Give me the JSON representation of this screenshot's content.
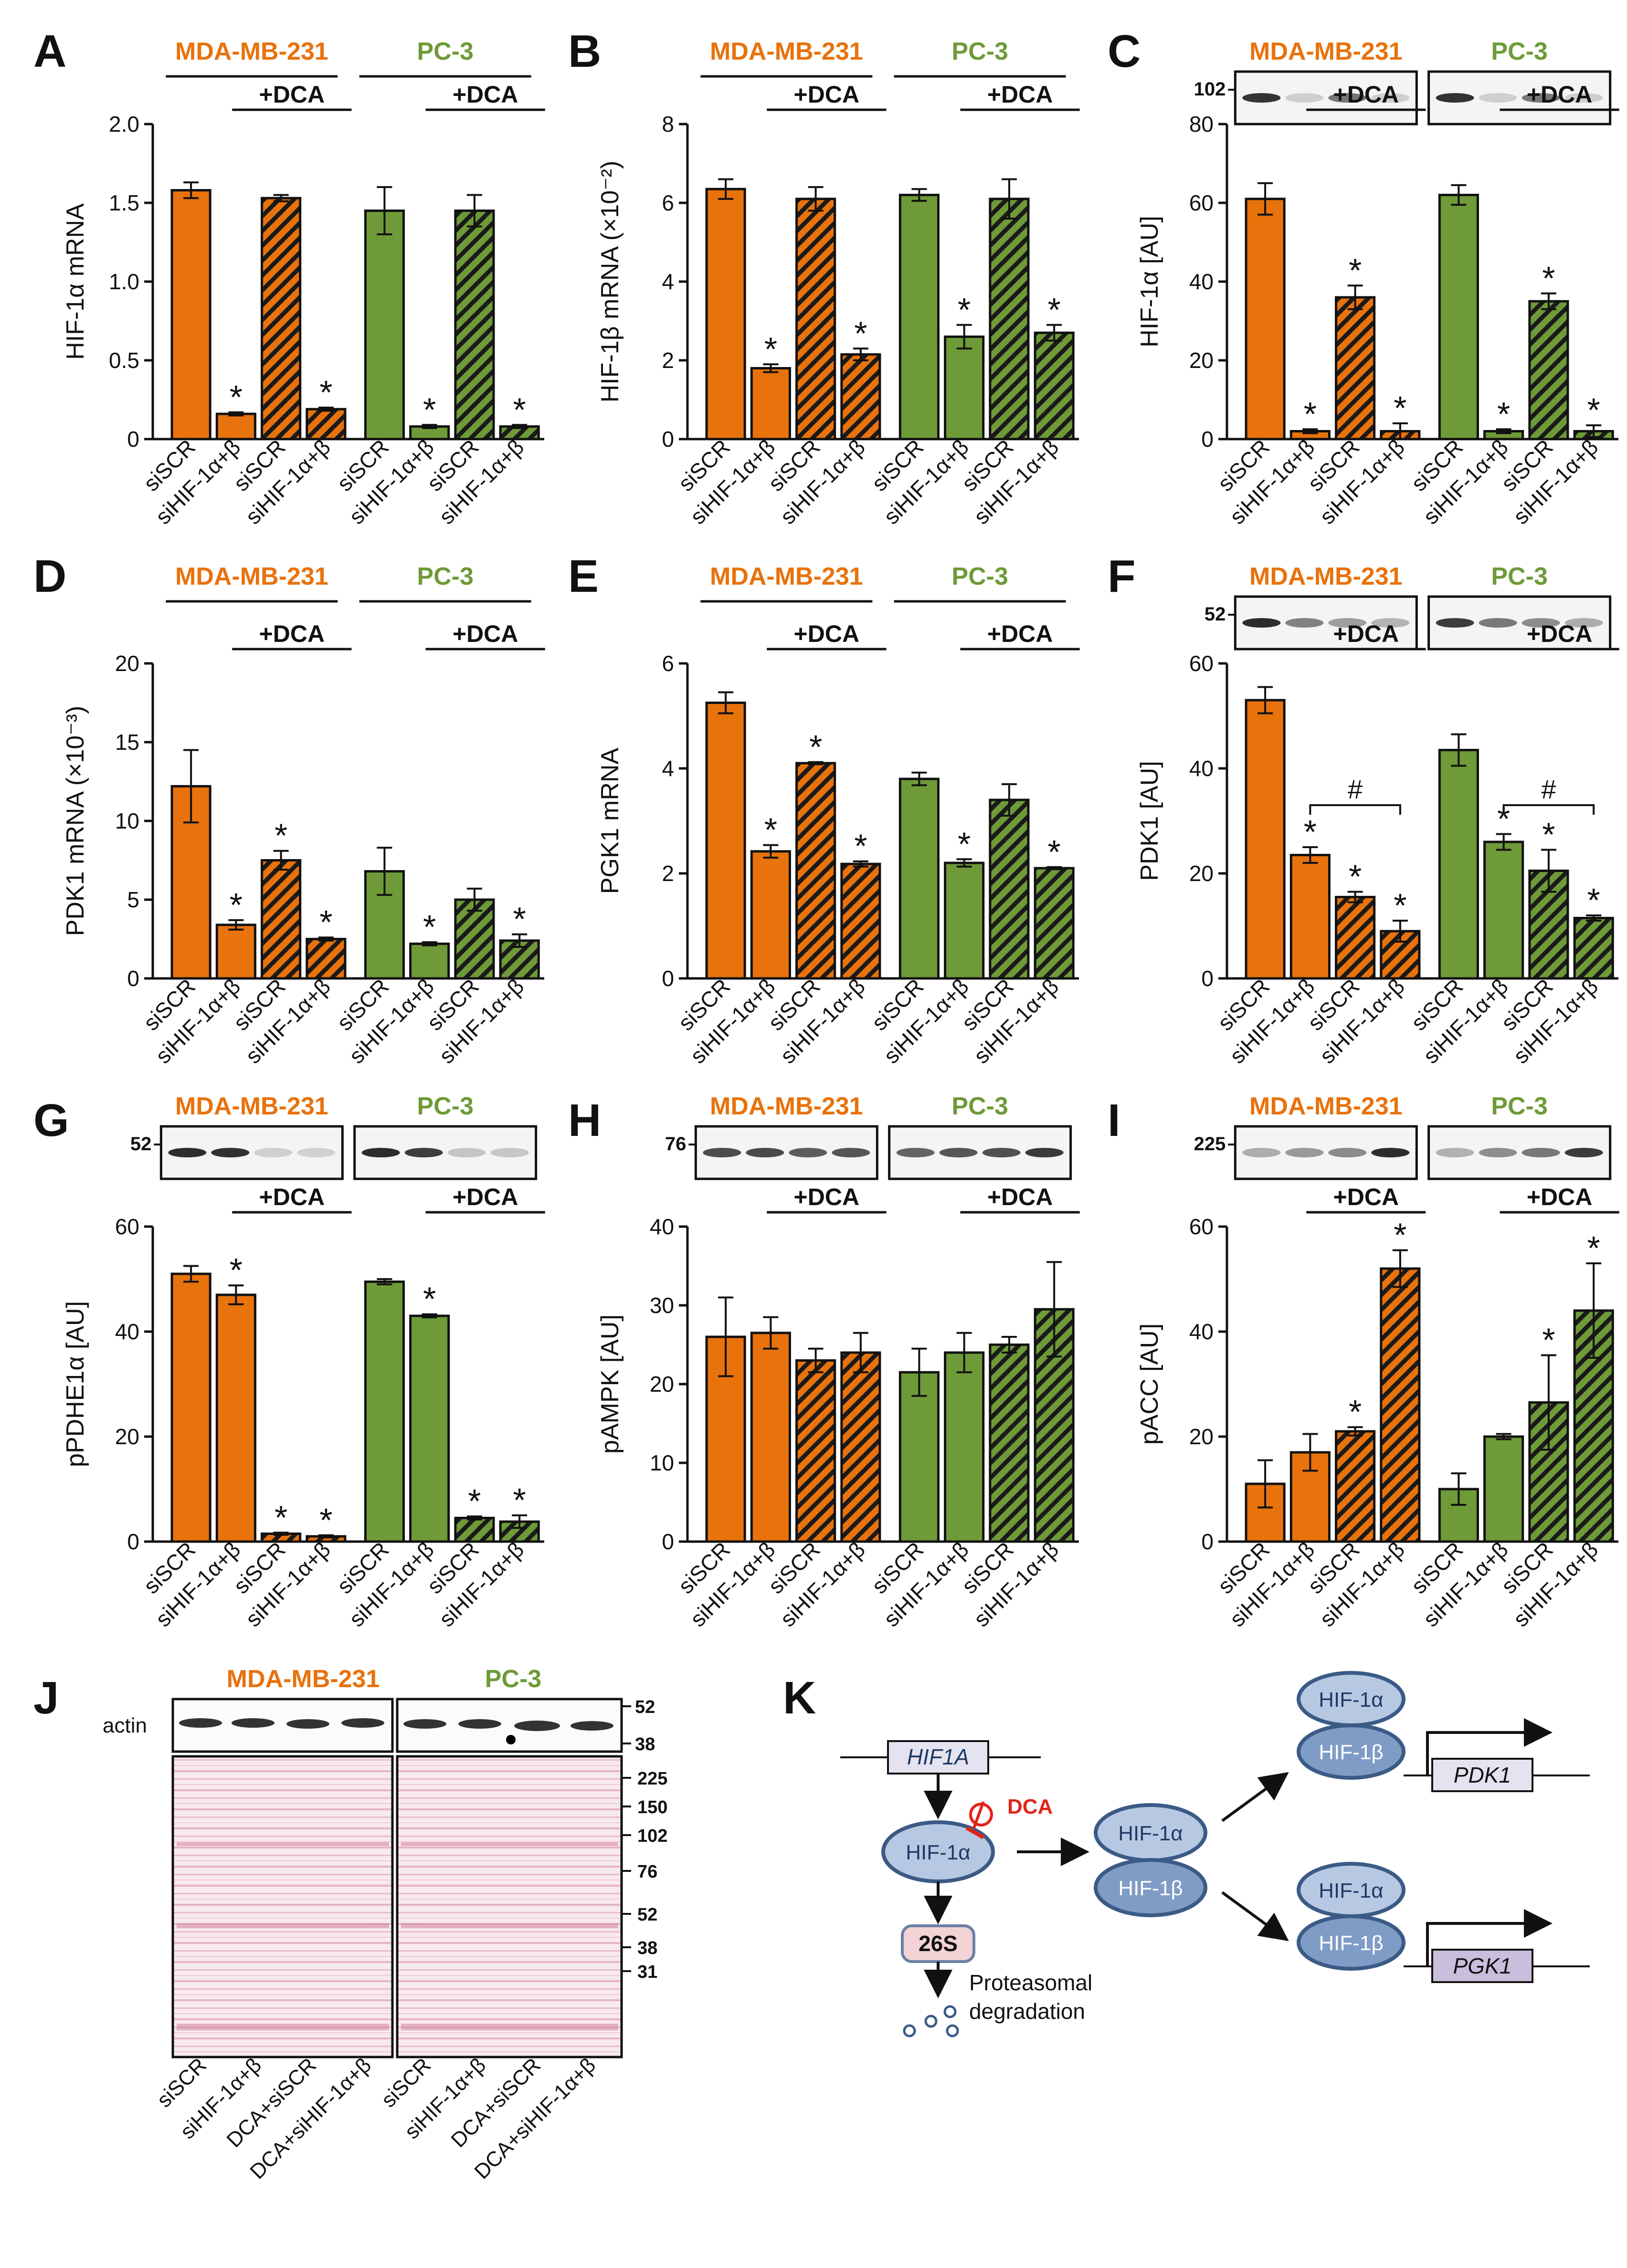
{
  "colors": {
    "orange": "#E8720C",
    "green": "#6E9A38",
    "pink": "#D95B8A",
    "node_fill": "#B7C9E2",
    "node_stroke": "#3B5B86",
    "red": "#E2231A"
  },
  "groups": {
    "mda": "MDA-MB-231",
    "pc3": "PC-3",
    "dca": "+DCA"
  },
  "categories": [
    "siSCR",
    "siHIF-1α+β",
    "siSCR",
    "siHIF-1α+β"
  ],
  "significance_mark": "*",
  "hash_mark": "#",
  "chart_data": [
    {
      "panel": "A",
      "type": "bar",
      "ylabel": "HIF-1α mRNA",
      "ylim": [
        0,
        2.0
      ],
      "ticks": [
        "0",
        "0.5",
        "1.0",
        "1.5",
        "2.0"
      ],
      "tickvals": [
        0,
        0.5,
        1.0,
        1.5,
        2.0
      ],
      "series": [
        {
          "name": "MDA-MB-231",
          "values": [
            1.58,
            0.16,
            1.53,
            0.19
          ],
          "errors": [
            0.05,
            0.01,
            0.02,
            0.01
          ],
          "sig": [
            false,
            true,
            false,
            true
          ]
        },
        {
          "name": "PC-3",
          "values": [
            1.45,
            0.08,
            1.45,
            0.08
          ],
          "errors": [
            0.15,
            0.01,
            0.1,
            0.01
          ],
          "sig": [
            false,
            true,
            false,
            true
          ]
        }
      ]
    },
    {
      "panel": "B",
      "type": "bar",
      "ylabel": "HIF-1β mRNA (×10⁻²)",
      "ylim": [
        0,
        8
      ],
      "ticks": [
        "0",
        "2",
        "4",
        "6",
        "8"
      ],
      "tickvals": [
        0,
        2,
        4,
        6,
        8
      ],
      "series": [
        {
          "name": "MDA-MB-231",
          "values": [
            6.35,
            1.8,
            6.1,
            2.15
          ],
          "errors": [
            0.25,
            0.1,
            0.3,
            0.15
          ],
          "sig": [
            false,
            true,
            false,
            true
          ]
        },
        {
          "name": "PC-3",
          "values": [
            6.2,
            2.6,
            6.1,
            2.7
          ],
          "errors": [
            0.15,
            0.3,
            0.5,
            0.2
          ],
          "sig": [
            false,
            true,
            false,
            true
          ]
        }
      ]
    },
    {
      "panel": "C",
      "type": "bar",
      "ylabel": "HIF-1α [AU]",
      "ylim": [
        0,
        80
      ],
      "ticks": [
        "0",
        "20",
        "40",
        "60",
        "80"
      ],
      "tickvals": [
        0,
        20,
        40,
        60,
        80
      ],
      "blot_marker": "102",
      "series": [
        {
          "name": "MDA-MB-231",
          "values": [
            61,
            2,
            36,
            2
          ],
          "errors": [
            4,
            0.5,
            3,
            2
          ],
          "sig": [
            false,
            true,
            true,
            true
          ]
        },
        {
          "name": "PC-3",
          "values": [
            62,
            2,
            35,
            2
          ],
          "errors": [
            2.5,
            0.5,
            2,
            1.5
          ],
          "sig": [
            false,
            true,
            true,
            true
          ]
        }
      ]
    },
    {
      "panel": "D",
      "type": "bar",
      "ylabel": "PDK1 mRNA (×10⁻³)",
      "ylim": [
        0,
        20
      ],
      "ticks": [
        "0",
        "5",
        "10",
        "15",
        "20"
      ],
      "tickvals": [
        0,
        5,
        10,
        15,
        20
      ],
      "series": [
        {
          "name": "MDA-MB-231",
          "values": [
            12.2,
            3.4,
            7.5,
            2.5
          ],
          "errors": [
            2.3,
            0.3,
            0.6,
            0.1
          ],
          "sig": [
            false,
            true,
            true,
            true
          ]
        },
        {
          "name": "PC-3",
          "values": [
            6.8,
            2.2,
            5.0,
            2.4
          ],
          "errors": [
            1.5,
            0.1,
            0.7,
            0.4
          ],
          "sig": [
            false,
            true,
            false,
            true
          ]
        }
      ]
    },
    {
      "panel": "E",
      "type": "bar",
      "ylabel": "PGK1 mRNA",
      "ylim": [
        0,
        6
      ],
      "ticks": [
        "0",
        "2",
        "4",
        "6"
      ],
      "tickvals": [
        0,
        2,
        4,
        6
      ],
      "series": [
        {
          "name": "MDA-MB-231",
          "values": [
            5.25,
            2.42,
            4.1,
            2.18
          ],
          "errors": [
            0.2,
            0.12,
            0.02,
            0.05
          ],
          "sig": [
            false,
            true,
            true,
            true
          ]
        },
        {
          "name": "PC-3",
          "values": [
            3.8,
            2.2,
            3.4,
            2.1
          ],
          "errors": [
            0.12,
            0.07,
            0.3,
            0.02
          ],
          "sig": [
            false,
            true,
            false,
            true
          ]
        }
      ]
    },
    {
      "panel": "F",
      "type": "bar",
      "ylabel": "PDK1 [AU]",
      "ylim": [
        0,
        60
      ],
      "ticks": [
        "0",
        "20",
        "40",
        "60"
      ],
      "tickvals": [
        0,
        20,
        40,
        60
      ],
      "blot_marker": "52",
      "series": [
        {
          "name": "MDA-MB-231",
          "values": [
            53,
            23.5,
            15.5,
            9
          ],
          "errors": [
            2.5,
            1.5,
            1,
            2
          ],
          "sig": [
            false,
            true,
            true,
            true
          ]
        },
        {
          "name": "PC-3",
          "values": [
            43.5,
            26,
            20.5,
            11.5
          ],
          "errors": [
            3,
            1.5,
            4,
            0.5
          ],
          "sig": [
            false,
            true,
            true,
            true
          ]
        }
      ],
      "hash_brackets": [
        [
          1,
          3
        ]
      ]
    },
    {
      "panel": "G",
      "type": "bar",
      "ylabel": "pPDHE1α [AU]",
      "ylim": [
        0,
        60
      ],
      "ticks": [
        "0",
        "20",
        "40",
        "60"
      ],
      "tickvals": [
        0,
        20,
        40,
        60
      ],
      "blot_marker": "52",
      "series": [
        {
          "name": "MDA-MB-231",
          "values": [
            51,
            47,
            1.5,
            1
          ],
          "errors": [
            1.5,
            1.8,
            0.2,
            0.2
          ],
          "sig": [
            false,
            true,
            true,
            true
          ]
        },
        {
          "name": "PC-3",
          "values": [
            49.5,
            43,
            4.5,
            3.8
          ],
          "errors": [
            0.5,
            0.3,
            0.3,
            1.2
          ],
          "sig": [
            false,
            true,
            true,
            true
          ]
        }
      ]
    },
    {
      "panel": "H",
      "type": "bar",
      "ylabel": "pAMPK [AU]",
      "ylim": [
        0,
        40
      ],
      "ticks": [
        "0",
        "10",
        "20",
        "30",
        "40"
      ],
      "tickvals": [
        0,
        10,
        20,
        30,
        40
      ],
      "blot_marker": "76",
      "series": [
        {
          "name": "MDA-MB-231",
          "values": [
            26,
            26.5,
            23,
            24
          ],
          "errors": [
            5,
            2,
            1.5,
            2.5
          ],
          "sig": [
            false,
            false,
            false,
            false
          ]
        },
        {
          "name": "PC-3",
          "values": [
            21.5,
            24,
            25,
            29.5
          ],
          "errors": [
            3,
            2.5,
            1,
            6
          ],
          "sig": [
            false,
            false,
            false,
            false
          ]
        }
      ]
    },
    {
      "panel": "I",
      "type": "bar",
      "ylabel": "pACC [AU]",
      "ylim": [
        0,
        60
      ],
      "ticks": [
        "0",
        "20",
        "40",
        "60"
      ],
      "tickvals": [
        0,
        20,
        40,
        60
      ],
      "blot_marker": "225",
      "series": [
        {
          "name": "MDA-MB-231",
          "values": [
            11,
            17,
            21,
            52
          ],
          "errors": [
            4.5,
            3.5,
            0.8,
            3.5
          ],
          "sig": [
            false,
            false,
            true,
            true
          ]
        },
        {
          "name": "PC-3",
          "values": [
            10,
            20,
            26.5,
            44
          ],
          "errors": [
            3,
            0.5,
            9,
            9
          ],
          "sig": [
            false,
            false,
            true,
            true
          ]
        }
      ]
    }
  ],
  "panel_j": {
    "actin_label": "actin",
    "actin_markers": [
      "52",
      "38"
    ],
    "ponceau_markers": [
      "225",
      "150",
      "102",
      "76",
      "52",
      "38",
      "31"
    ],
    "lane_labels": [
      "siSCR",
      "siHIF-1α+β",
      "DCA+siSCR",
      "DCA+siHIF-1α+β",
      "siSCR",
      "siHIF-1α+β",
      "DCA+siSCR",
      "DCA+siHIF-1α+β"
    ]
  },
  "panel_k": {
    "gene": "HIF1A",
    "hif1a": "HIF-1α",
    "hif1b": "HIF-1β",
    "dca": "DCA",
    "proteasome": "26S",
    "degradation_line1": "Proteasomal",
    "degradation_line2": "degradation",
    "target1": "PDK1",
    "target2": "PGK1"
  }
}
